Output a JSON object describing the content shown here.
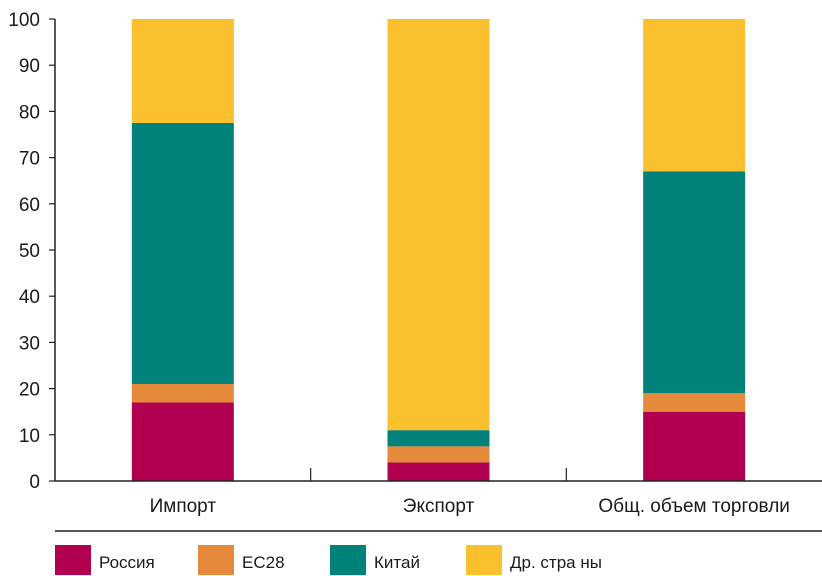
{
  "chart_data": {
    "type": "bar",
    "stacked": true,
    "categories": [
      "Импорт",
      "Экспорт",
      "Общ. объем торговли"
    ],
    "series": [
      {
        "name": "Россия",
        "color": "#B0004F",
        "values": [
          17,
          4,
          15
        ]
      },
      {
        "name": "ЕС28",
        "color": "#E58A3A",
        "values": [
          4,
          3.5,
          4
        ]
      },
      {
        "name": "Китай",
        "color": "#00817A",
        "values": [
          56.5,
          3.5,
          48
        ]
      },
      {
        "name": "Др. стра ны",
        "color": "#FBC02D",
        "values": [
          22.5,
          89,
          33
        ]
      }
    ],
    "title": "",
    "xlabel": "",
    "ylabel": "",
    "ylim": [
      0,
      100
    ],
    "yticks": [
      0,
      10,
      20,
      30,
      40,
      50,
      60,
      70,
      80,
      90,
      100
    ],
    "grid": false,
    "legend_position": "bottom"
  }
}
